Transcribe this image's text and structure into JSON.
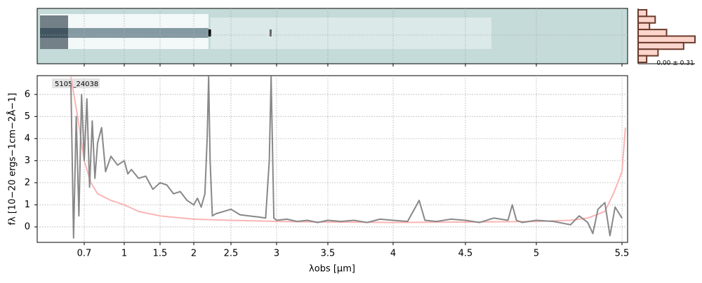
{
  "chart_data": {
    "type": "line",
    "label": "5105_24038",
    "x_label": "λobs [μm]",
    "y_label": "fλ [10−20 ergs−1cm−2Å−1]",
    "xlim": [
      0.58,
      5.53
    ],
    "ylim": [
      -0.7,
      6.85
    ],
    "xticks": [
      0.7,
      1.0,
      1.5,
      2.0,
      2.5,
      3.0,
      3.5,
      4.0,
      4.5,
      5.0,
      5.5
    ],
    "yticks": [
      0,
      1,
      2,
      3,
      4,
      5,
      6
    ],
    "grid": true,
    "series": [
      {
        "color": "#fbb4b4",
        "x": [
          0.6,
          0.65,
          0.7,
          0.75,
          0.8,
          0.9,
          1.0,
          1.2,
          1.5,
          2.0,
          2.5,
          3.0,
          3.5,
          4.0,
          4.5,
          5.0,
          5.2,
          5.3,
          5.4,
          5.45,
          5.5,
          5.52
        ],
        "values": [
          6.8,
          5,
          3,
          2,
          1.5,
          1.2,
          1.0,
          0.7,
          0.5,
          0.35,
          0.3,
          0.25,
          0.22,
          0.2,
          0.22,
          0.25,
          0.3,
          0.4,
          0.7,
          1.5,
          2.5,
          4.5
        ]
      },
      {
        "color": "#888888",
        "x": [
          0.6,
          0.62,
          0.64,
          0.66,
          0.68,
          0.7,
          0.72,
          0.74,
          0.76,
          0.78,
          0.8,
          0.83,
          0.86,
          0.9,
          0.95,
          1.0,
          1.05,
          1.1,
          1.2,
          1.3,
          1.4,
          1.5,
          1.6,
          1.7,
          1.8,
          1.9,
          2.0,
          2.05,
          2.1,
          2.15,
          2.18,
          2.2,
          2.22,
          2.25,
          2.3,
          2.4,
          2.5,
          2.6,
          2.7,
          2.8,
          2.88,
          2.92,
          2.94,
          2.97,
          3.0,
          3.1,
          3.2,
          3.3,
          3.4,
          3.5,
          3.6,
          3.7,
          3.8,
          3.9,
          4.0,
          4.1,
          4.18,
          4.22,
          4.3,
          4.4,
          4.5,
          4.6,
          4.7,
          4.8,
          4.83,
          4.86,
          4.9,
          5.0,
          5.1,
          5.2,
          5.25,
          5.3,
          5.33,
          5.36,
          5.4,
          5.43,
          5.46,
          5.5
        ],
        "values": [
          6.5,
          -0.5,
          5,
          0.5,
          6,
          3,
          5.8,
          1.8,
          4.8,
          2.2,
          3.8,
          4.5,
          2.5,
          3.2,
          2.8,
          3.0,
          2.4,
          2.6,
          2.2,
          2.3,
          1.7,
          2.0,
          1.9,
          1.5,
          1.6,
          1.2,
          1.0,
          1.3,
          0.9,
          1.5,
          4,
          6.8,
          3,
          0.5,
          0.6,
          0.7,
          0.8,
          0.55,
          0.5,
          0.45,
          0.4,
          3,
          6.8,
          0.4,
          0.3,
          0.35,
          0.25,
          0.3,
          0.2,
          0.3,
          0.25,
          0.3,
          0.2,
          0.35,
          0.3,
          0.25,
          1.2,
          0.3,
          0.25,
          0.35,
          0.3,
          0.2,
          0.4,
          0.3,
          1.0,
          0.3,
          0.2,
          0.3,
          0.25,
          0.1,
          0.5,
          0.2,
          -0.3,
          0.8,
          1.1,
          -0.4,
          0.9,
          0.4
        ]
      }
    ],
    "inset": {
      "label": "0.00 ± 0.31",
      "xlim": [
        0,
        1
      ],
      "counts": [
        0.15,
        0.3,
        0.2,
        0.5,
        1.0,
        0.8,
        0.35,
        0.15
      ]
    }
  }
}
